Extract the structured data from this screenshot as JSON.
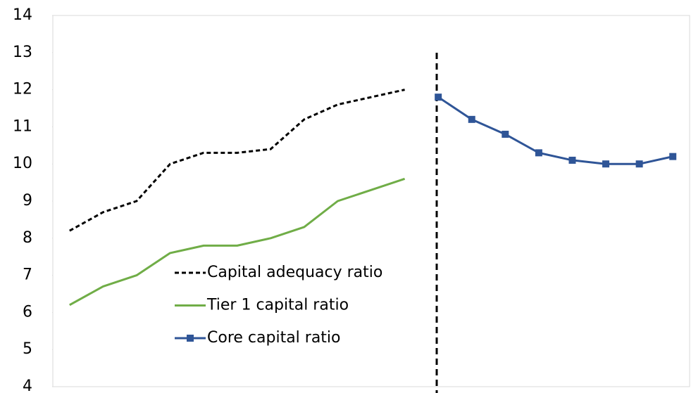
{
  "chart_data": {
    "type": "line",
    "categories": [
      null,
      null,
      null,
      null,
      null,
      null,
      null,
      null,
      null,
      null,
      null,
      null,
      null,
      null,
      null,
      null,
      null,
      null,
      null
    ],
    "series": [
      {
        "name": "Capital adequacy ratio",
        "color": "#000000",
        "style": "dashed",
        "values": [
          8.2,
          8.7,
          9.0,
          10.0,
          10.3,
          10.3,
          10.4,
          11.2,
          11.6,
          11.8,
          12.0,
          null,
          null,
          null,
          null,
          null,
          null,
          null,
          null
        ]
      },
      {
        "name": "Tier 1 capital ratio",
        "color": "#70ad47",
        "style": "solid",
        "values": [
          6.2,
          6.7,
          7.0,
          7.6,
          7.8,
          7.8,
          8.0,
          8.3,
          9.0,
          9.3,
          9.6,
          null,
          null,
          null,
          null,
          null,
          null,
          null,
          null
        ]
      },
      {
        "name": "Core capital ratio",
        "color": "#2f5597",
        "style": "solid",
        "marker": "square",
        "values": [
          null,
          null,
          null,
          null,
          null,
          null,
          null,
          null,
          null,
          null,
          null,
          11.8,
          11.2,
          10.8,
          10.3,
          10.1,
          10.0,
          10.0,
          10.2
        ]
      }
    ],
    "ylim": [
      4,
      14
    ],
    "yticks": [
      4,
      5,
      6,
      7,
      8,
      9,
      10,
      11,
      12,
      13,
      14
    ],
    "grid": false,
    "legend": "lower left"
  }
}
